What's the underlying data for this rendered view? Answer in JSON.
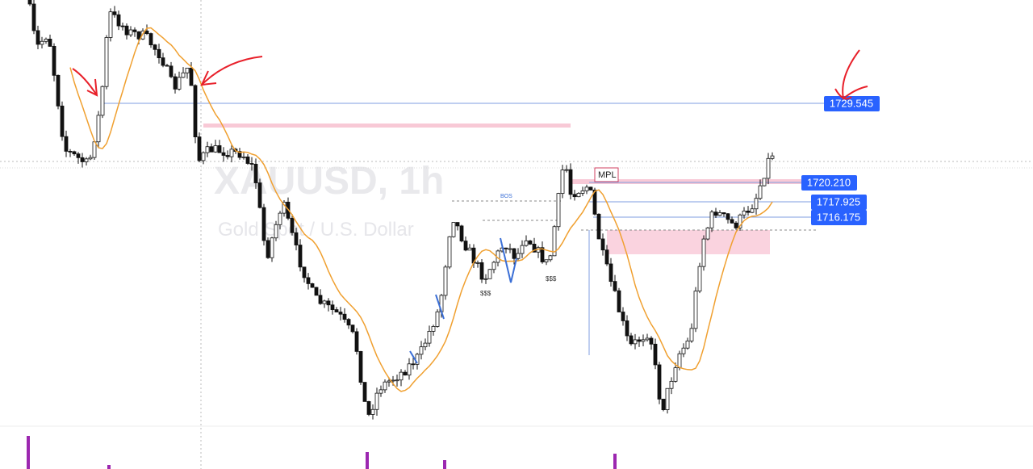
{
  "watermark": {
    "symbol": "XAUUSD, 1h",
    "description": "Gold Spot / U.S. Dollar"
  },
  "price_labels": [
    "1729.545",
    "1720.210",
    "1717.925",
    "1716.175"
  ],
  "annotations": {
    "mpl": "MPL",
    "bos": "BOS",
    "liquidity": [
      "$$$",
      "$$$"
    ]
  }
}
